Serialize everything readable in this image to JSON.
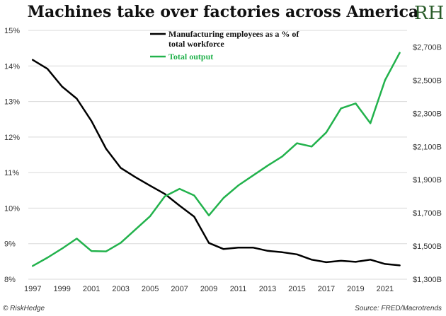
{
  "header": {
    "title": "Machines take over factories across America",
    "logo_text": "RH"
  },
  "footer": {
    "left": "© RiskHedge",
    "right": "Source: FRED/Macrotrends"
  },
  "chart_data": {
    "type": "line",
    "title": "Machines take over factories across America",
    "x": [
      1997,
      1998,
      1999,
      2000,
      2001,
      2002,
      2003,
      2004,
      2005,
      2006,
      2007,
      2008,
      2009,
      2010,
      2011,
      2012,
      2013,
      2014,
      2015,
      2016,
      2017,
      2018,
      2019,
      2020,
      2021,
      2022
    ],
    "x_ticks": [
      "1997",
      "1999",
      "2001",
      "2003",
      "2005",
      "2007",
      "2009",
      "2011",
      "2013",
      "2015",
      "2017",
      "2019",
      "2021"
    ],
    "xlim": [
      1996.7,
      2022.5
    ],
    "y_left": {
      "ylim": [
        8,
        15
      ],
      "ticks": [
        "8%",
        "9%",
        "10%",
        "11%",
        "12%",
        "13%",
        "14%",
        "15%"
      ],
      "tick_values": [
        8,
        9,
        10,
        11,
        12,
        13,
        14,
        15
      ]
    },
    "y_right": {
      "ylim": [
        1300,
        2800
      ],
      "ticks": [
        "$1,300B",
        "$1,500B",
        "$1,700B",
        "$1,900B",
        "$2,100B",
        "$2,300B",
        "$2,500B",
        "$2,700B"
      ],
      "tick_values": [
        1300,
        1500,
        1700,
        1900,
        2100,
        2300,
        2500,
        2700
      ]
    },
    "series": [
      {
        "name": "Manufacturing employees as a % of total workforce",
        "name_lines": [
          "Manufacturing employees as a % of",
          "total workforce"
        ],
        "axis": "left",
        "color": "#000000",
        "values": [
          14.17,
          13.92,
          13.42,
          13.08,
          12.45,
          11.67,
          11.13,
          10.87,
          10.63,
          10.4,
          10.07,
          9.76,
          9.02,
          8.85,
          8.89,
          8.89,
          8.8,
          8.76,
          8.7,
          8.55,
          8.48,
          8.52,
          8.49,
          8.55,
          8.43,
          8.39
        ]
      },
      {
        "name": "Total output",
        "name_lines": [
          "Total output"
        ],
        "axis": "right",
        "color": "#22b24c",
        "values": [
          1380,
          1430,
          1485,
          1545,
          1470,
          1468,
          1520,
          1600,
          1680,
          1800,
          1845,
          1805,
          1685,
          1790,
          1865,
          1925,
          1985,
          2040,
          2120,
          2100,
          2185,
          2330,
          2360,
          2240,
          2500,
          2665
        ]
      }
    ],
    "grid": true,
    "legend_position": "top-center"
  }
}
